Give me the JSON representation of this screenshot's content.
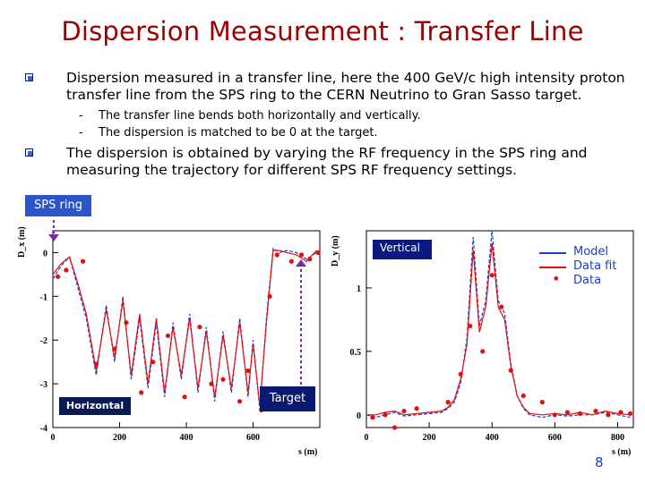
{
  "slide": {
    "title": "Dispersion Measurement : Transfer Line",
    "bullets": [
      "Dispersion measured in a transfer line, here the 400 GeV/c high intensity proton transfer line from the SPS ring to the CERN Neutrino to Gran Sasso target.",
      "The dispersion is obtained by varying the RF frequency in the SPS ring and measuring the trajectory for different SPS RF frequency settings."
    ],
    "sub_bullets": [
      "The transfer line bends both horizontally and vertically.",
      "The dispersion is matched to be 0 at the target."
    ],
    "dash": "-",
    "page_number": "8"
  },
  "labels": {
    "sps_ring": "SPS ring",
    "horizontal": "Horizontal",
    "vertical": "Vertical",
    "target": "Target"
  },
  "legend": {
    "model": "Model",
    "fit": "Data fit",
    "data": "Data",
    "data_marker": "•"
  },
  "colors": {
    "title": "#9b0000",
    "model": "#1a3fd0",
    "fit": "#e01010",
    "data": "#e01010",
    "label_bg": "#2e55c8",
    "dark_label_bg": "#0a1a55",
    "arrow": "#7a2aa0"
  },
  "chart_data": [
    {
      "type": "line",
      "ylabel": "D_x (m)",
      "xlabel": "s (m)",
      "xlim": [
        0,
        800
      ],
      "ylim": [
        -4,
        0.5
      ],
      "xticks": [
        "0",
        "200",
        "400",
        "600"
      ],
      "yticks": [
        "0",
        "-1",
        "-2",
        "-3",
        "-4"
      ],
      "series": [
        {
          "name": "Model",
          "x": [
            0,
            25,
            50,
            75,
            100,
            130,
            160,
            185,
            210,
            235,
            260,
            285,
            310,
            335,
            360,
            385,
            410,
            435,
            460,
            485,
            510,
            535,
            560,
            585,
            600,
            620,
            640,
            660,
            680,
            700,
            730,
            760,
            790
          ],
          "y": [
            -0.6,
            -0.3,
            -0.1,
            -0.8,
            -1.5,
            -2.8,
            -1.2,
            -2.5,
            -1.0,
            -2.9,
            -1.5,
            -3.1,
            -1.6,
            -3.3,
            -1.6,
            -2.9,
            -1.4,
            -3.2,
            -1.7,
            -3.4,
            -1.8,
            -3.2,
            -1.5,
            -3.3,
            -2.0,
            -3.6,
            -1.5,
            0.1,
            0.0,
            0.05,
            0.0,
            -0.15,
            0.0
          ]
        },
        {
          "name": "Data fit",
          "x": [
            0,
            25,
            50,
            75,
            100,
            130,
            160,
            185,
            210,
            235,
            260,
            285,
            310,
            335,
            360,
            385,
            410,
            435,
            460,
            485,
            510,
            535,
            560,
            585,
            600,
            620,
            640,
            660,
            680,
            700,
            730,
            760,
            790
          ],
          "y": [
            -0.5,
            -0.25,
            -0.1,
            -0.7,
            -1.4,
            -2.7,
            -1.3,
            -2.4,
            -1.1,
            -2.8,
            -1.4,
            -3.0,
            -1.5,
            -3.2,
            -1.7,
            -2.8,
            -1.5,
            -3.1,
            -1.8,
            -3.3,
            -1.9,
            -3.1,
            -1.6,
            -3.2,
            -2.1,
            -3.5,
            -1.6,
            0.05,
            0.05,
            0.0,
            -0.05,
            -0.2,
            0.05
          ]
        },
        {
          "name": "Data",
          "x": [
            15,
            40,
            90,
            130,
            185,
            220,
            265,
            300,
            345,
            395,
            440,
            475,
            510,
            560,
            585,
            625,
            650,
            672,
            715,
            745,
            770,
            795
          ],
          "y": [
            -0.55,
            -0.4,
            -0.2,
            -2.55,
            -2.2,
            -1.6,
            -3.2,
            -2.5,
            -1.9,
            -3.3,
            -1.7,
            -3.0,
            -2.9,
            -3.4,
            -2.7,
            -3.6,
            -1.0,
            -0.05,
            -0.2,
            -0.05,
            -0.15,
            0.0
          ]
        }
      ]
    },
    {
      "type": "line",
      "ylabel": "D_y (m)",
      "xlabel": "s (m)",
      "xlim": [
        0,
        850
      ],
      "ylim": [
        -0.1,
        1.45
      ],
      "xticks": [
        "0",
        "200",
        "400",
        "600",
        "800"
      ],
      "yticks": [
        "0",
        "0.5",
        "1"
      ],
      "series": [
        {
          "name": "Model",
          "x": [
            0,
            30,
            60,
            90,
            120,
            160,
            200,
            240,
            260,
            280,
            300,
            320,
            340,
            360,
            380,
            400,
            420,
            440,
            460,
            480,
            500,
            520,
            560,
            600,
            640,
            680,
            720,
            760,
            800,
            840
          ],
          "y": [
            0.0,
            -0.02,
            0.0,
            0.02,
            -0.01,
            0.0,
            0.01,
            0.02,
            0.05,
            0.1,
            0.25,
            0.6,
            1.4,
            0.7,
            0.9,
            1.45,
            0.9,
            0.8,
            0.4,
            0.15,
            0.05,
            0.0,
            -0.02,
            0.0,
            -0.01,
            0.0,
            0.0,
            0.02,
            0.0,
            -0.02
          ]
        },
        {
          "name": "Data fit",
          "x": [
            0,
            30,
            60,
            90,
            120,
            160,
            200,
            240,
            260,
            280,
            300,
            320,
            340,
            360,
            380,
            400,
            420,
            440,
            460,
            480,
            500,
            520,
            560,
            600,
            640,
            680,
            720,
            760,
            800,
            840
          ],
          "y": [
            0.0,
            0.0,
            0.02,
            0.03,
            0.0,
            0.01,
            0.02,
            0.03,
            0.06,
            0.12,
            0.28,
            0.55,
            1.3,
            0.65,
            0.85,
            1.35,
            0.85,
            0.75,
            0.38,
            0.15,
            0.06,
            0.01,
            0.0,
            0.01,
            0.0,
            0.02,
            0.0,
            0.03,
            0.01,
            0.0
          ]
        },
        {
          "name": "Data",
          "x": [
            20,
            60,
            90,
            120,
            160,
            260,
            300,
            330,
            370,
            400,
            430,
            460,
            500,
            560,
            600,
            640,
            680,
            730,
            770,
            810,
            840
          ],
          "y": [
            -0.02,
            0.0,
            -0.1,
            0.03,
            0.05,
            0.1,
            0.32,
            0.7,
            0.5,
            1.1,
            0.85,
            0.35,
            0.15,
            0.1,
            0.0,
            0.02,
            0.01,
            0.03,
            0.0,
            0.02,
            0.01
          ]
        }
      ]
    }
  ]
}
